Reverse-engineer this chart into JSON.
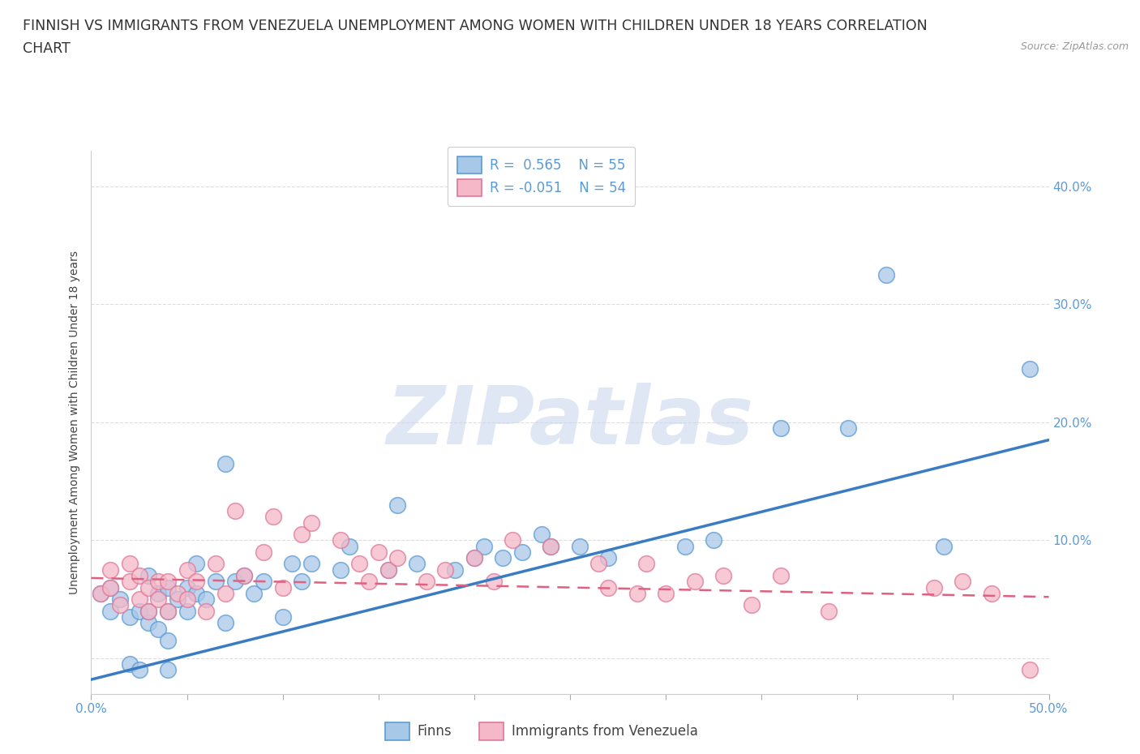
{
  "title_line1": "FINNISH VS IMMIGRANTS FROM VENEZUELA UNEMPLOYMENT AMONG WOMEN WITH CHILDREN UNDER 18 YEARS CORRELATION",
  "title_line2": "CHART",
  "source": "Source: ZipAtlas.com",
  "ylabel": "Unemployment Among Women with Children Under 18 years",
  "xlim": [
    0.0,
    0.5
  ],
  "ylim": [
    -0.03,
    0.43
  ],
  "xticks": [
    0.0,
    0.05,
    0.1,
    0.15,
    0.2,
    0.25,
    0.3,
    0.35,
    0.4,
    0.45,
    0.5
  ],
  "yticks": [
    0.0,
    0.1,
    0.2,
    0.3,
    0.4
  ],
  "legend_r_finns": "R =  0.565",
  "legend_n_finns": "N = 55",
  "legend_r_immigrants": "R = -0.051",
  "legend_n_immigrants": "N = 54",
  "color_finns_fill": "#A8C8E8",
  "color_finns_edge": "#5B9BD5",
  "color_immigrants_fill": "#F5B8C8",
  "color_immigrants_edge": "#E07898",
  "color_finns_line": "#3A7CC4",
  "color_immigrants_line": "#E06080",
  "color_watermark": "#C8D8EC",
  "background_color": "#FFFFFF",
  "grid_color": "#DDDDDD",
  "title_fontsize": 12.5,
  "axis_label_fontsize": 10,
  "tick_fontsize": 11,
  "legend_fontsize": 12,
  "watermark_text": "ZIPatlas",
  "finns_x": [
    0.005,
    0.01,
    0.01,
    0.015,
    0.02,
    0.02,
    0.025,
    0.025,
    0.03,
    0.03,
    0.03,
    0.035,
    0.035,
    0.04,
    0.04,
    0.04,
    0.04,
    0.045,
    0.05,
    0.05,
    0.055,
    0.055,
    0.06,
    0.065,
    0.07,
    0.07,
    0.075,
    0.08,
    0.085,
    0.09,
    0.1,
    0.105,
    0.11,
    0.115,
    0.13,
    0.135,
    0.155,
    0.16,
    0.17,
    0.19,
    0.2,
    0.205,
    0.215,
    0.225,
    0.235,
    0.24,
    0.255,
    0.27,
    0.31,
    0.325,
    0.36,
    0.395,
    0.415,
    0.445,
    0.49
  ],
  "finns_y": [
    0.055,
    0.04,
    0.06,
    0.05,
    -0.005,
    0.035,
    0.04,
    -0.01,
    0.03,
    0.04,
    0.07,
    0.025,
    0.055,
    0.015,
    0.04,
    0.06,
    -0.01,
    0.05,
    0.04,
    0.06,
    0.055,
    0.08,
    0.05,
    0.065,
    0.03,
    0.165,
    0.065,
    0.07,
    0.055,
    0.065,
    0.035,
    0.08,
    0.065,
    0.08,
    0.075,
    0.095,
    0.075,
    0.13,
    0.08,
    0.075,
    0.085,
    0.095,
    0.085,
    0.09,
    0.105,
    0.095,
    0.095,
    0.085,
    0.095,
    0.1,
    0.195,
    0.195,
    0.325,
    0.095,
    0.245
  ],
  "immigrants_x": [
    0.005,
    0.01,
    0.01,
    0.015,
    0.02,
    0.02,
    0.025,
    0.025,
    0.03,
    0.03,
    0.035,
    0.035,
    0.04,
    0.04,
    0.045,
    0.05,
    0.05,
    0.055,
    0.06,
    0.065,
    0.07,
    0.075,
    0.08,
    0.09,
    0.095,
    0.1,
    0.11,
    0.115,
    0.13,
    0.14,
    0.145,
    0.15,
    0.155,
    0.16,
    0.175,
    0.185,
    0.2,
    0.21,
    0.22,
    0.24,
    0.265,
    0.27,
    0.285,
    0.29,
    0.3,
    0.315,
    0.33,
    0.345,
    0.36,
    0.385,
    0.44,
    0.455,
    0.47,
    0.49
  ],
  "immigrants_y": [
    0.055,
    0.06,
    0.075,
    0.045,
    0.065,
    0.08,
    0.05,
    0.07,
    0.04,
    0.06,
    0.05,
    0.065,
    0.04,
    0.065,
    0.055,
    0.05,
    0.075,
    0.065,
    0.04,
    0.08,
    0.055,
    0.125,
    0.07,
    0.09,
    0.12,
    0.06,
    0.105,
    0.115,
    0.1,
    0.08,
    0.065,
    0.09,
    0.075,
    0.085,
    0.065,
    0.075,
    0.085,
    0.065,
    0.1,
    0.095,
    0.08,
    0.06,
    0.055,
    0.08,
    0.055,
    0.065,
    0.07,
    0.045,
    0.07,
    0.04,
    0.06,
    0.065,
    0.055,
    -0.01
  ],
  "finns_line_x": [
    0.0,
    0.5
  ],
  "finns_line_y": [
    -0.018,
    0.185
  ],
  "immigrants_line_x": [
    0.0,
    0.5
  ],
  "immigrants_line_y": [
    0.068,
    0.052
  ]
}
